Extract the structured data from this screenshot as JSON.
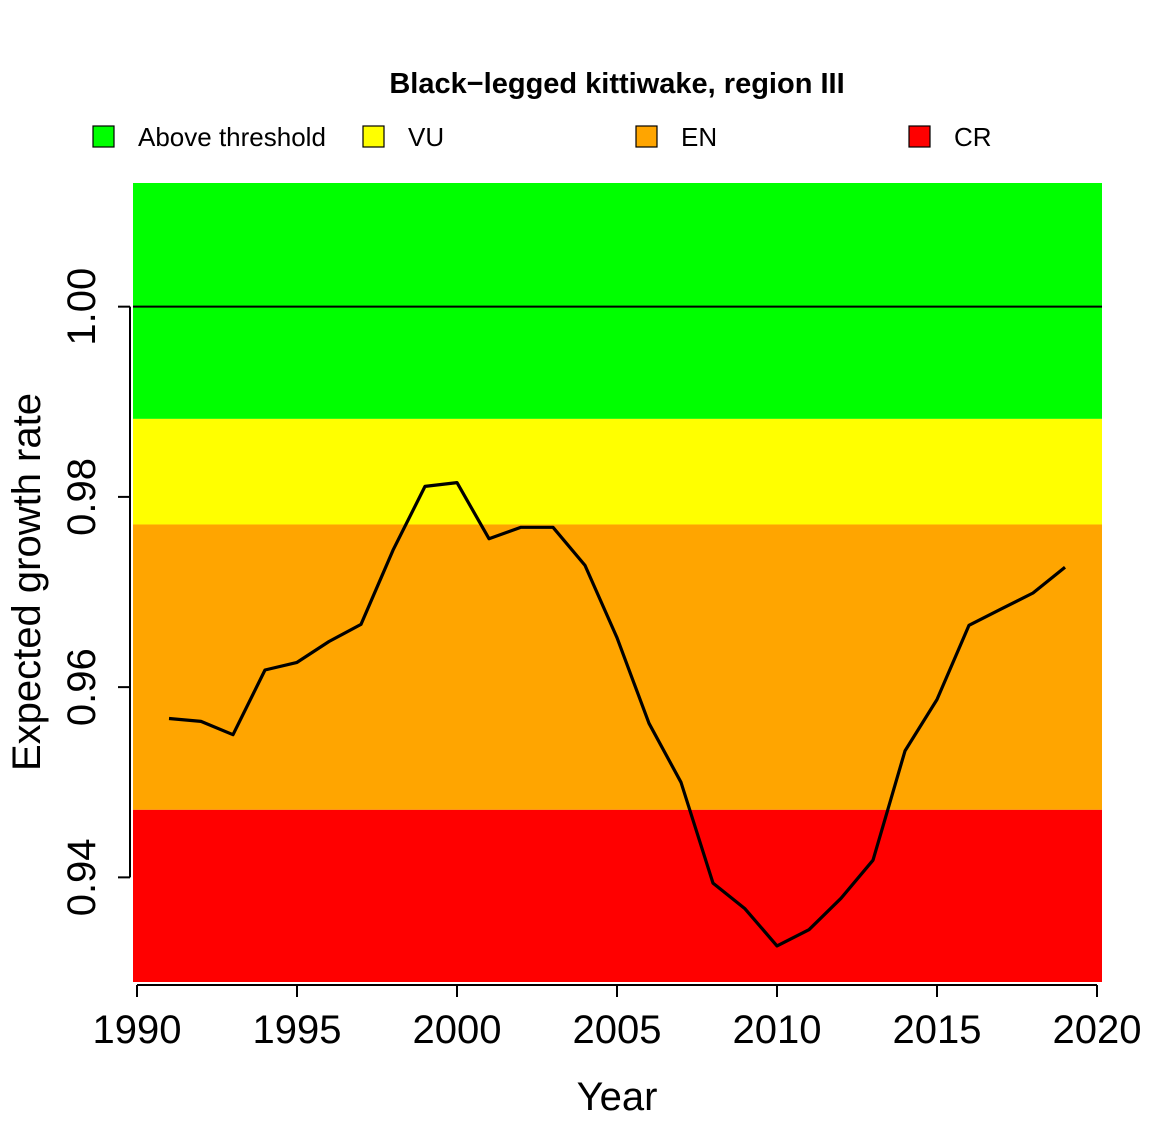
{
  "chart_data": {
    "type": "line",
    "title": "Black−legged kittiwake, region III",
    "xlabel": "Year",
    "ylabel": "Expected growth rate",
    "xlim": [
      1990,
      2020
    ],
    "ylim": [
      0.929,
      1.013
    ],
    "x_ticks": [
      1990,
      1995,
      2000,
      2005,
      2010,
      2015,
      2020
    ],
    "y_ticks": [
      0.94,
      0.96,
      0.98,
      1.0
    ],
    "y_tick_labels": [
      "0.94",
      "0.96",
      "0.98",
      "1.00"
    ],
    "reference_line": 1.0,
    "legend_position": "top",
    "bands": [
      {
        "name": "Above threshold",
        "color": "#00ff00",
        "from": 0.9882,
        "to": 1.013
      },
      {
        "name": "VU",
        "color": "#ffff00",
        "from": 0.9771,
        "to": 0.9882
      },
      {
        "name": "EN",
        "color": "#ffa500",
        "from": 0.9471,
        "to": 0.9771
      },
      {
        "name": "CR",
        "color": "#ff0000",
        "from": 0.929,
        "to": 0.9471
      }
    ],
    "series": [
      {
        "color": "#000000",
        "x": [
          1991,
          1992,
          1993,
          1994,
          1995,
          1996,
          1997,
          1998,
          1999,
          2000,
          2001,
          2002,
          2003,
          2004,
          2005,
          2006,
          2007,
          2008,
          2009,
          2010,
          2011,
          2012,
          2013,
          2014,
          2015,
          2016,
          2017,
          2018,
          2019
        ],
        "y": [
          0.9567,
          0.9564,
          0.955,
          0.9618,
          0.9626,
          0.9648,
          0.9666,
          0.9744,
          0.9811,
          0.9815,
          0.9756,
          0.9768,
          0.9768,
          0.9728,
          0.9652,
          0.9562,
          0.95,
          0.9394,
          0.9367,
          0.9328,
          0.9345,
          0.9378,
          0.9418,
          0.9533,
          0.9587,
          0.9665,
          0.9682,
          0.9699,
          0.9726
        ]
      }
    ]
  }
}
